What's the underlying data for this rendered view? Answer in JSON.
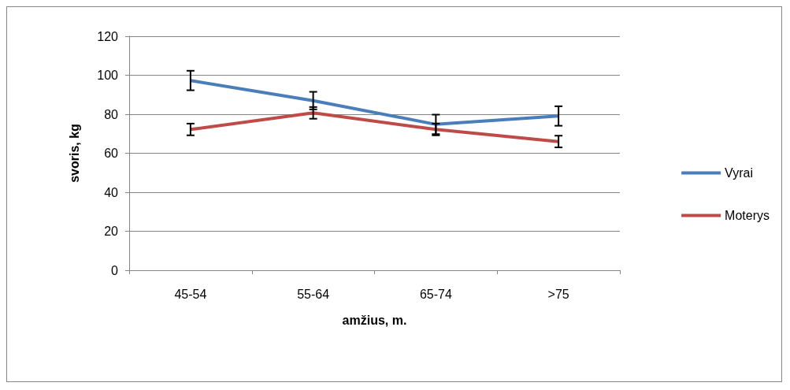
{
  "chart_data": {
    "type": "line",
    "xlabel": "amžius, m.",
    "ylabel": "svoris, kg",
    "categories": [
      "45-54",
      "55-64",
      "65-74",
      ">75"
    ],
    "series": [
      {
        "name": "Vyrai",
        "color": "#4a7ebb",
        "values": [
          97.3,
          87,
          74.8,
          79.1
        ],
        "errors": [
          5,
          4.5,
          5,
          5
        ]
      },
      {
        "name": "Moterys",
        "color": "#be4b48",
        "values": [
          72.2,
          80.7,
          72.2,
          66
        ],
        "errors": [
          3,
          3,
          3,
          3
        ]
      }
    ],
    "ylim": [
      0,
      120
    ],
    "yticks": [
      0,
      20,
      40,
      60,
      80,
      100,
      120
    ],
    "grid": "y",
    "legend": "right",
    "marker": "none"
  }
}
